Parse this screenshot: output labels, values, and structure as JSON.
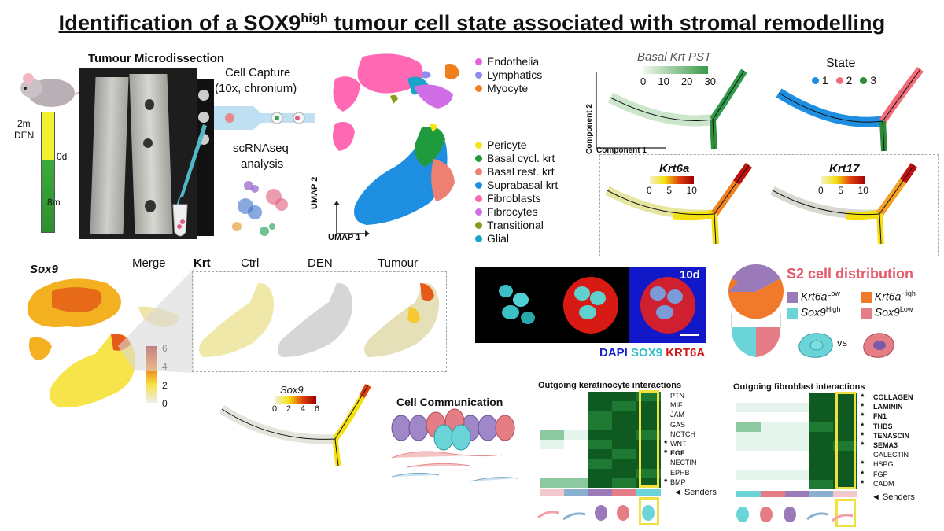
{
  "title": {
    "main": "Identification of a SOX9",
    "sup": "high",
    "rest": " tumour cell state associated with stromal remodelling"
  },
  "microdissection": {
    "heading": "Tumour Microdissection",
    "timeline": [
      "2m",
      "DEN",
      "0d",
      "8m"
    ]
  },
  "capture": {
    "line1": "Cell Capture",
    "line2": "(10x, chronium)",
    "analysis1": "scRNAseq",
    "analysis2": "analysis"
  },
  "umap": {
    "legend_top": [
      {
        "label": "Endothelia",
        "color": "#e75fd8"
      },
      {
        "label": "Lymphatics",
        "color": "#8f8cf0"
      },
      {
        "label": "Myocyte",
        "color": "#f07f1c"
      }
    ],
    "legend_bottom": [
      {
        "label": "Pericyte",
        "color": "#f4e619"
      },
      {
        "label": "Basal cycl. krt",
        "color": "#1f9a3c"
      },
      {
        "label": "Basal rest. krt",
        "color": "#ee7f73"
      },
      {
        "label": "Suprabasal krt",
        "color": "#1e8fe0"
      },
      {
        "label": "Fibroblasts",
        "color": "#ff69b4"
      },
      {
        "label": "Fibrocytes",
        "color": "#d06ee6"
      },
      {
        "label": "Transitional",
        "color": "#8b9c21"
      },
      {
        "label": "Glial",
        "color": "#1aa3c8"
      }
    ],
    "axis_y": "UMAP 2",
    "axis_x": "UMAP 1"
  },
  "pseudotime": {
    "basal_title": "Basal Krt PST",
    "basal_ticks": [
      "0",
      "10",
      "20",
      "30"
    ],
    "state_title": "State",
    "states": [
      {
        "label": "1",
        "color": "#1e8fe0"
      },
      {
        "label": "2",
        "color": "#f06a78"
      },
      {
        "label": "3",
        "color": "#2e8b3a"
      }
    ],
    "comp2": "Component 2",
    "comp1": "Component 1",
    "krt6a": "Krt6a",
    "krt17": "Krt17",
    "scale_ticks": [
      "0",
      "5",
      "10"
    ]
  },
  "sox9_panel": {
    "sox9": "Sox9",
    "merge": "Merge",
    "scale": [
      "6",
      "4",
      "2",
      "0"
    ]
  },
  "krt_panel": {
    "krt": "Krt",
    "cols": [
      "Ctrl",
      "DEN",
      "Tumour"
    ]
  },
  "sox9_traj": {
    "title": "Sox9",
    "ticks": [
      "0",
      "2",
      "4",
      "6"
    ]
  },
  "cell_comm": {
    "label": "Cell Communication"
  },
  "micro": {
    "day": "10d",
    "dapi": "DAPI",
    "sox9": "SOX9",
    "krt6a": "KRT6A"
  },
  "s2": {
    "title": "S2 cell distribution",
    "k_low": "Krt6a",
    "k_low_sup": "Low",
    "k_high": "Krt6a",
    "k_high_sup": "High",
    "s_high": "Sox9",
    "s_high_sup": "High",
    "s_low": "Sox9",
    "s_low_sup": "Low",
    "vs": "vs"
  },
  "kera": {
    "title": "Outgoing keratinocyte interactions",
    "rows": [
      "PTN",
      "MIF",
      "JAM",
      "GAS",
      "NOTCH",
      "WNT",
      "EGF",
      "NECTIN",
      "EPHB",
      "BMP"
    ],
    "bold": [
      "EGF"
    ],
    "stars": [
      "WNT",
      "EGF",
      "BMP"
    ],
    "senders": "◄ Senders"
  },
  "fibro": {
    "title": "Outgoing fibroblast interactions",
    "rows": [
      "COLLAGEN",
      "LAMININ",
      "FN1",
      "THBS",
      "TENASCIN",
      "SEMA3",
      "GALECTIN",
      "HSPG",
      "FGF",
      "CADM"
    ],
    "bold": [
      "COLLAGEN",
      "LAMININ",
      "FN1",
      "THBS",
      "TENASCIN",
      "SEMA3"
    ],
    "stars": [
      "COLLAGEN",
      "LAMININ",
      "FN1",
      "THBS",
      "TENASCIN",
      "SEMA3",
      "HSPG",
      "FGF",
      "CADM"
    ],
    "senders": "◄ Senders"
  }
}
